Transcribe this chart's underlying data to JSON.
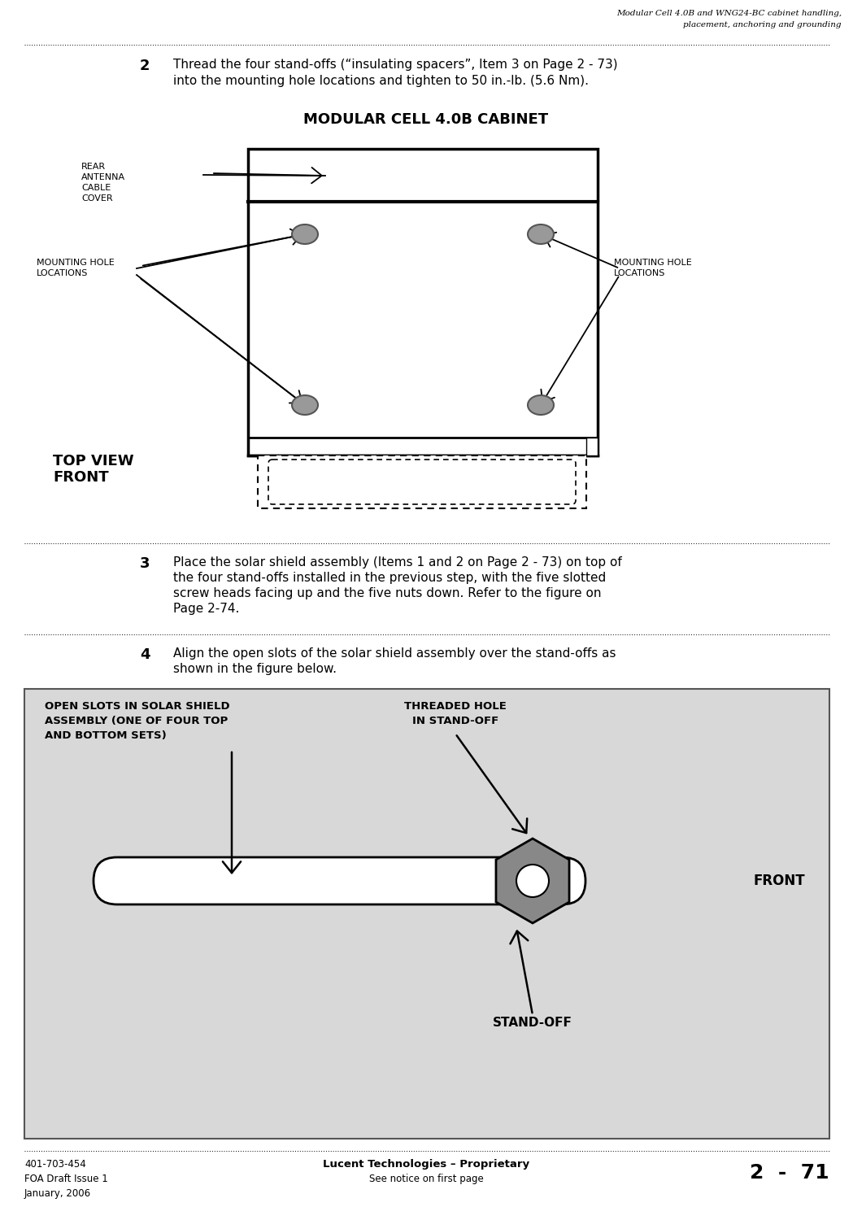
{
  "header_title_line1": "Modular Cell 4.0B and WNG24-BC cabinet handling,",
  "header_title_line2": "placement, anchoring and grounding",
  "footer_left_line1": "401-703-454",
  "footer_left_line2": "FOA Draft Issue 1",
  "footer_left_line3": "January, 2006",
  "footer_center_line1": "Lucent Technologies – Proprietary",
  "footer_center_line2": "See notice on first page",
  "footer_right": "2  -  71",
  "step2_num": "2",
  "step2_text_line1": "Thread the four stand-offs (“insulating spacers”, Item 3 on Page 2 - 73)",
  "step2_text_line2": "into the mounting hole locations and tighten to 50 in.-lb. (5.6 Nm).",
  "diagram1_title": "MODULAR CELL 4.0B CABINET",
  "label_rear_line1": "REAR",
  "label_rear_line2": "ANTENNA",
  "label_rear_line3": "CABLE",
  "label_rear_line4": "COVER",
  "label_mounting_left_line1": "MOUNTING HOLE",
  "label_mounting_left_line2": "LOCATIONS",
  "label_mounting_right_line1": "MOUNTING HOLE",
  "label_mounting_right_line2": "LOCATIONS",
  "label_topview_line1": "TOP VIEW",
  "label_topview_line2": "FRONT",
  "step3_num": "3",
  "step3_line1": "Place the solar shield assembly (Items 1 and 2 on Page 2 - 73) on top of",
  "step3_line2": "the four stand-offs installed in the previous step, with the five slotted",
  "step3_line3": "screw heads facing up and the five nuts down. Refer to the figure on",
  "step3_line4": "Page 2-74.",
  "step4_num": "4",
  "step4_line1": "Align the open slots of the solar shield assembly over the stand-offs as",
  "step4_line2": "shown in the figure below.",
  "label_open_slots_line1": "OPEN SLOTS IN SOLAR SHIELD",
  "label_open_slots_line2": "ASSEMBLY (ONE OF FOUR TOP",
  "label_open_slots_line3": "AND BOTTOM SETS)",
  "label_threaded_hole_line1": "THREADED HOLE",
  "label_threaded_hole_line2": "IN STAND-OFF",
  "label_front": "FRONT",
  "label_standoff": "STAND-OFF",
  "bg_color": "#ffffff",
  "text_color": "#000000",
  "diag_bg": "#d8d8d8",
  "circle_fill": "#888888"
}
